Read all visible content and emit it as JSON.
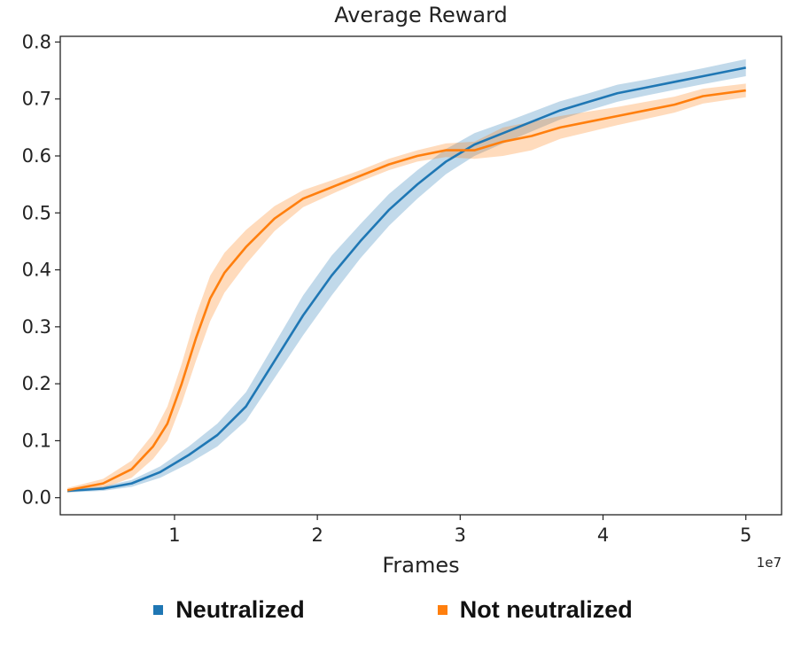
{
  "chart_data": {
    "type": "line",
    "title": "Average Reward",
    "xlabel": "Frames",
    "ylabel": "",
    "x_offset_label": "1e7",
    "xlim": [
      0.2,
      5.25
    ],
    "ylim": [
      -0.03,
      0.81
    ],
    "xticks": [
      1,
      2,
      3,
      4,
      5
    ],
    "xtick_labels": [
      "1",
      "2",
      "3",
      "4",
      "5"
    ],
    "yticks": [
      0.0,
      0.1,
      0.2,
      0.3,
      0.4,
      0.5,
      0.6,
      0.7,
      0.8
    ],
    "ytick_labels": [
      "0.0",
      "0.1",
      "0.2",
      "0.3",
      "0.4",
      "0.5",
      "0.6",
      "0.7",
      "0.8"
    ],
    "grid": false,
    "legend_position": "bottom",
    "series": [
      {
        "name": "Neutralized",
        "color": "#1f77b4",
        "x": [
          0.25,
          0.5,
          0.7,
          0.9,
          1.1,
          1.3,
          1.5,
          1.7,
          1.9,
          2.1,
          2.3,
          2.5,
          2.7,
          2.9,
          3.1,
          3.3,
          3.5,
          3.7,
          3.9,
          4.1,
          4.3,
          4.5,
          4.7,
          5.0
        ],
        "y": [
          0.012,
          0.016,
          0.025,
          0.045,
          0.075,
          0.11,
          0.16,
          0.24,
          0.32,
          0.39,
          0.45,
          0.505,
          0.55,
          0.59,
          0.62,
          0.64,
          0.66,
          0.68,
          0.695,
          0.71,
          0.72,
          0.73,
          0.74,
          0.755
        ],
        "band": [
          0.003,
          0.004,
          0.006,
          0.01,
          0.015,
          0.02,
          0.025,
          0.03,
          0.035,
          0.035,
          0.03,
          0.028,
          0.025,
          0.022,
          0.02,
          0.018,
          0.017,
          0.016,
          0.015,
          0.015,
          0.014,
          0.014,
          0.014,
          0.015
        ]
      },
      {
        "name": "Not neutralized",
        "color": "#ff7f0e",
        "x": [
          0.25,
          0.5,
          0.7,
          0.85,
          0.95,
          1.05,
          1.15,
          1.25,
          1.35,
          1.5,
          1.7,
          1.9,
          2.1,
          2.3,
          2.5,
          2.7,
          2.9,
          3.1,
          3.3,
          3.5,
          3.7,
          3.9,
          4.1,
          4.3,
          4.5,
          4.7,
          5.0
        ],
        "y": [
          0.013,
          0.025,
          0.05,
          0.09,
          0.13,
          0.2,
          0.28,
          0.35,
          0.395,
          0.44,
          0.49,
          0.525,
          0.545,
          0.565,
          0.585,
          0.6,
          0.61,
          0.61,
          0.625,
          0.635,
          0.65,
          0.66,
          0.67,
          0.68,
          0.69,
          0.705,
          0.715
        ],
        "band": [
          0.004,
          0.008,
          0.015,
          0.022,
          0.03,
          0.035,
          0.04,
          0.04,
          0.035,
          0.03,
          0.022,
          0.015,
          0.012,
          0.01,
          0.01,
          0.01,
          0.012,
          0.015,
          0.025,
          0.025,
          0.02,
          0.018,
          0.016,
          0.015,
          0.014,
          0.013,
          0.012
        ]
      }
    ]
  }
}
